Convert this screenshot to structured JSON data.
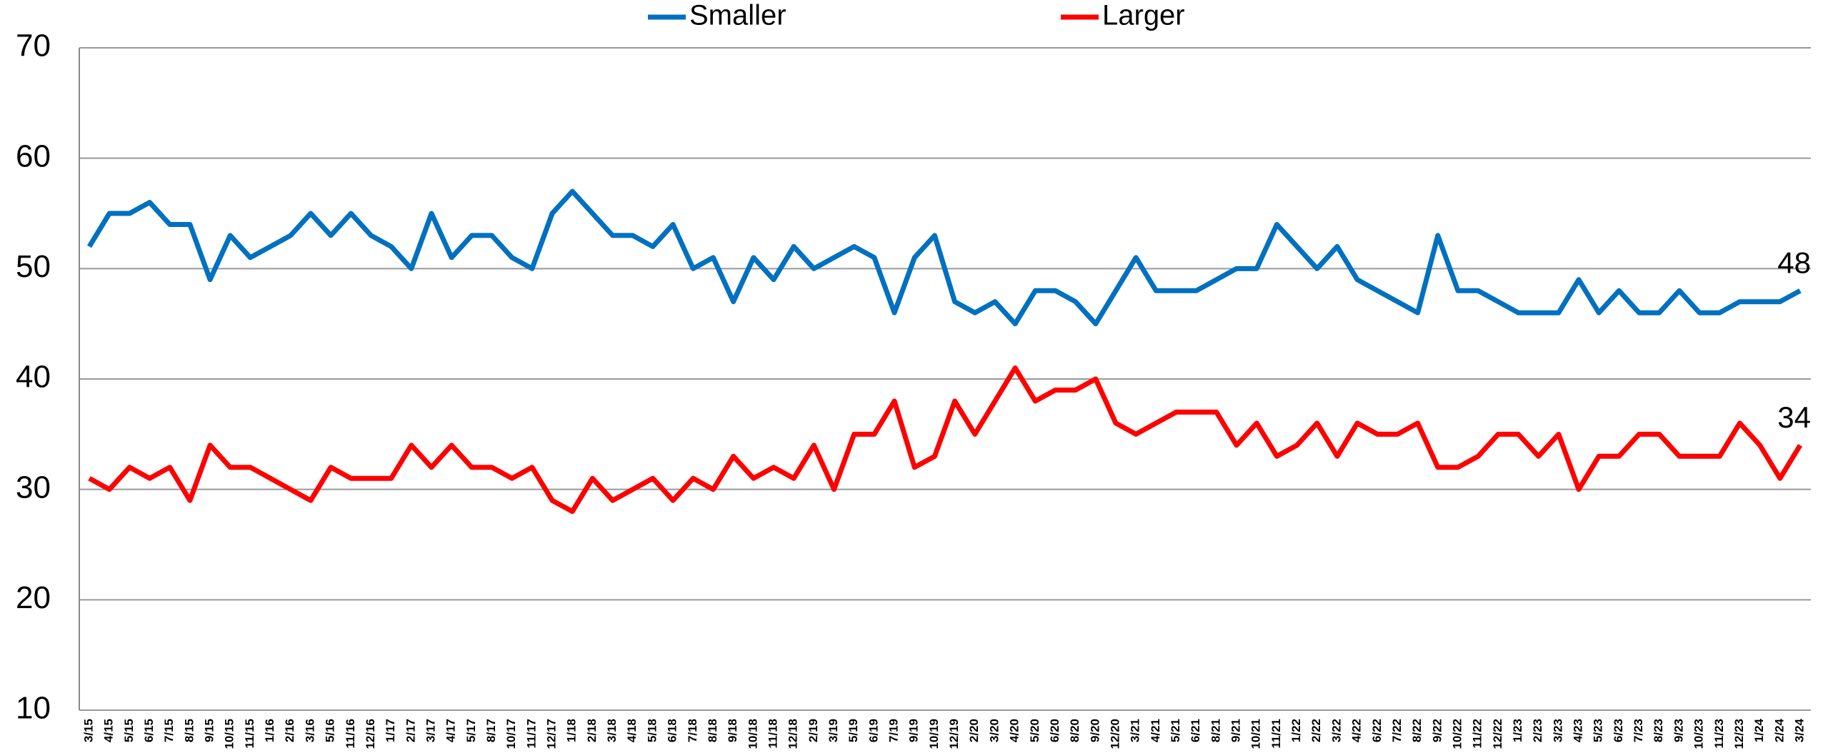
{
  "chart_data": {
    "type": "line",
    "categories": [
      "3/15",
      "4/15",
      "5/15",
      "6/15",
      "7/15",
      "8/15",
      "9/15",
      "10/15",
      "11/15",
      "1/16",
      "2/16",
      "3/16",
      "5/16",
      "11/16",
      "12/16",
      "1/17",
      "2/17",
      "3/17",
      "4/17",
      "5/17",
      "8/17",
      "10/17",
      "11/17",
      "12/17",
      "1/18",
      "2/18",
      "3/18",
      "4/18",
      "5/18",
      "6/18",
      "7/18",
      "8/18",
      "9/18",
      "10/18",
      "11/18",
      "12/18",
      "2/19",
      "3/19",
      "5/19",
      "6/19",
      "7/19",
      "9/19",
      "10/19",
      "12/19",
      "2/20",
      "3/20",
      "4/20",
      "5/20",
      "6/20",
      "8/20",
      "9/20",
      "12/20",
      "3/21",
      "4/21",
      "5/21",
      "6/21",
      "8/21",
      "9/21",
      "10/21",
      "11/21",
      "1/22",
      "2/22",
      "3/22",
      "4/22",
      "6/22",
      "7/22",
      "8/22",
      "9/22",
      "10/22",
      "11/22",
      "12/22",
      "1/23",
      "2/23",
      "3/23",
      "4/23",
      "5/23",
      "6/23",
      "7/23",
      "8/23",
      "9/23",
      "10/23",
      "11/23",
      "12/23",
      "1/24",
      "2/24",
      "3/24"
    ],
    "series": [
      {
        "name": "Smaller",
        "color": "#0070c0",
        "values": [
          52,
          55,
          55,
          56,
          54,
          54,
          49,
          53,
          51,
          52,
          53,
          55,
          53,
          55,
          53,
          52,
          50,
          55,
          51,
          53,
          53,
          51,
          50,
          55,
          57,
          55,
          53,
          53,
          52,
          54,
          50,
          51,
          47,
          51,
          49,
          52,
          50,
          51,
          52,
          51,
          46,
          51,
          53,
          47,
          46,
          47,
          45,
          48,
          48,
          47,
          45,
          48,
          51,
          48,
          48,
          48,
          49,
          50,
          50,
          54,
          52,
          50,
          52,
          49,
          48,
          47,
          46,
          53,
          48,
          48,
          47,
          46,
          46,
          46,
          49,
          46,
          48,
          46,
          46,
          48,
          46,
          46,
          47,
          47,
          47,
          48
        ]
      },
      {
        "name": "Larger",
        "color": "#ff0000",
        "values": [
          31,
          30,
          32,
          31,
          32,
          29,
          34,
          32,
          32,
          31,
          30,
          29,
          32,
          31,
          31,
          31,
          34,
          32,
          34,
          32,
          32,
          31,
          32,
          29,
          28,
          31,
          29,
          30,
          31,
          29,
          31,
          30,
          33,
          31,
          32,
          31,
          34,
          30,
          35,
          35,
          38,
          32,
          33,
          38,
          35,
          38,
          41,
          38,
          39,
          39,
          40,
          36,
          35,
          36,
          37,
          37,
          37,
          34,
          36,
          33,
          34,
          36,
          33,
          36,
          35,
          35,
          36,
          32,
          32,
          33,
          35,
          35,
          33,
          35,
          30,
          33,
          33,
          35,
          35,
          33,
          33,
          33,
          36,
          34,
          31,
          34
        ]
      }
    ],
    "ylim": [
      10,
      70
    ],
    "yticks": [
      10,
      20,
      30,
      40,
      50,
      60,
      70
    ],
    "grid": true,
    "legend": "top"
  }
}
